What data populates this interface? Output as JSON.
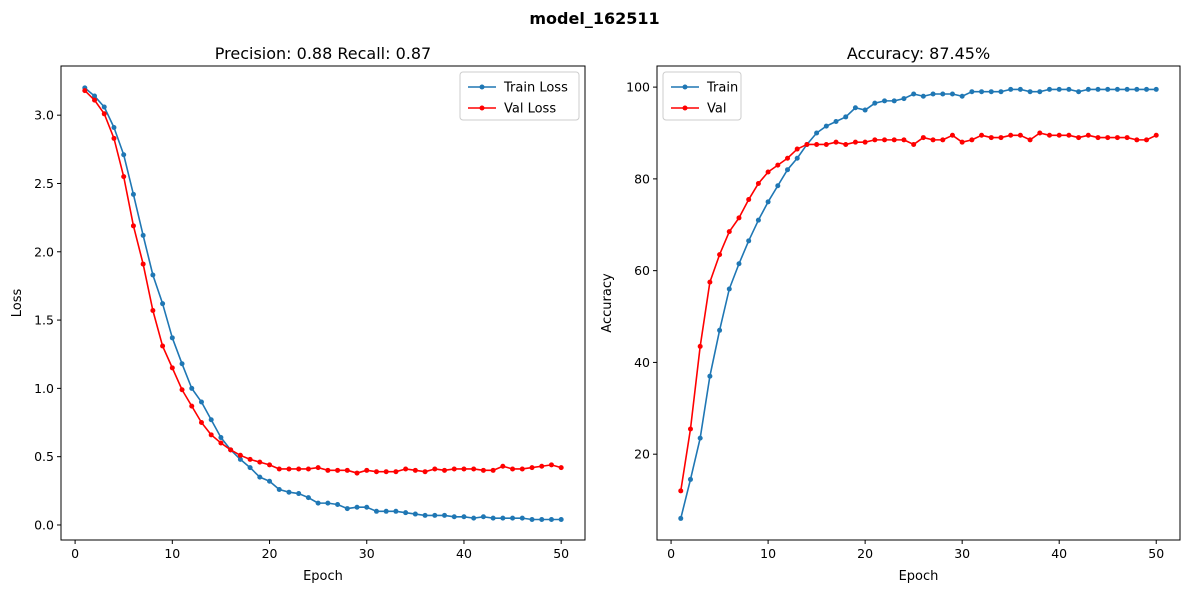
{
  "figure": {
    "suptitle": "model_162511"
  },
  "chart_data": [
    {
      "type": "line",
      "title": "Precision: 0.88 Recall: 0.87",
      "xlabel": "Epoch",
      "ylabel": "Loss",
      "xlim": [
        -1.45,
        52.45
      ],
      "ylim": [
        -0.11,
        3.36
      ],
      "xticks": [
        0,
        10,
        20,
        30,
        40,
        50
      ],
      "xtick_labels": [
        "0",
        "10",
        "20",
        "30",
        "40",
        "50"
      ],
      "yticks": [
        0.0,
        0.5,
        1.0,
        1.5,
        2.0,
        2.5,
        3.0
      ],
      "ytick_labels": [
        "0.0",
        "0.5",
        "1.0",
        "1.5",
        "2.0",
        "2.5",
        "3.0"
      ],
      "grid": false,
      "legend": "top-right",
      "x": [
        1,
        2,
        3,
        4,
        5,
        6,
        7,
        8,
        9,
        10,
        11,
        12,
        13,
        14,
        15,
        16,
        17,
        18,
        19,
        20,
        21,
        22,
        23,
        24,
        25,
        26,
        27,
        28,
        29,
        30,
        31,
        32,
        33,
        34,
        35,
        36,
        37,
        38,
        39,
        40,
        41,
        42,
        43,
        44,
        45,
        46,
        47,
        48,
        49,
        50
      ],
      "series": [
        {
          "name": "Train Loss",
          "color": "#1f77b4",
          "values": [
            3.2,
            3.14,
            3.06,
            2.91,
            2.71,
            2.42,
            2.12,
            1.83,
            1.62,
            1.37,
            1.18,
            1.0,
            0.9,
            0.77,
            0.64,
            0.55,
            0.48,
            0.42,
            0.35,
            0.32,
            0.26,
            0.24,
            0.23,
            0.2,
            0.16,
            0.16,
            0.15,
            0.12,
            0.13,
            0.13,
            0.1,
            0.1,
            0.1,
            0.09,
            0.08,
            0.07,
            0.07,
            0.07,
            0.06,
            0.06,
            0.05,
            0.06,
            0.05,
            0.05,
            0.05,
            0.05,
            0.04,
            0.04,
            0.04,
            0.04
          ]
        },
        {
          "name": "Val Loss",
          "color": "#ff0000",
          "values": [
            3.18,
            3.11,
            3.01,
            2.83,
            2.55,
            2.19,
            1.91,
            1.57,
            1.31,
            1.15,
            0.99,
            0.87,
            0.75,
            0.66,
            0.6,
            0.55,
            0.51,
            0.48,
            0.46,
            0.44,
            0.41,
            0.41,
            0.41,
            0.41,
            0.42,
            0.4,
            0.4,
            0.4,
            0.38,
            0.4,
            0.39,
            0.39,
            0.39,
            0.41,
            0.4,
            0.39,
            0.41,
            0.4,
            0.41,
            0.41,
            0.41,
            0.4,
            0.4,
            0.43,
            0.41,
            0.41,
            0.42,
            0.43,
            0.44,
            0.42
          ]
        }
      ]
    },
    {
      "type": "line",
      "title": "Accuracy: 87.45%",
      "xlabel": "Epoch",
      "ylabel": "Accuracy",
      "xlim": [
        -1.45,
        52.45
      ],
      "ylim": [
        1.3,
        104.6
      ],
      "xticks": [
        0,
        10,
        20,
        30,
        40,
        50
      ],
      "xtick_labels": [
        "0",
        "10",
        "20",
        "30",
        "40",
        "50"
      ],
      "yticks": [
        20,
        40,
        60,
        80,
        100
      ],
      "ytick_labels": [
        "20",
        "40",
        "60",
        "80",
        "100"
      ],
      "grid": false,
      "legend": "top-left",
      "x": [
        1,
        2,
        3,
        4,
        5,
        6,
        7,
        8,
        9,
        10,
        11,
        12,
        13,
        14,
        15,
        16,
        17,
        18,
        19,
        20,
        21,
        22,
        23,
        24,
        25,
        26,
        27,
        28,
        29,
        30,
        31,
        32,
        33,
        34,
        35,
        36,
        37,
        38,
        39,
        40,
        41,
        42,
        43,
        44,
        45,
        46,
        47,
        48,
        49,
        50
      ],
      "series": [
        {
          "name": "Train",
          "color": "#1f77b4",
          "values": [
            6.0,
            14.5,
            23.5,
            37.0,
            47.0,
            56.0,
            61.5,
            66.5,
            71.0,
            75.0,
            78.5,
            82.0,
            84.5,
            87.5,
            90.0,
            91.5,
            92.5,
            93.5,
            95.5,
            95.0,
            96.5,
            97.0,
            97.0,
            97.5,
            98.5,
            98.0,
            98.5,
            98.5,
            98.5,
            98.0,
            99.0,
            99.0,
            99.0,
            99.0,
            99.5,
            99.5,
            99.0,
            99.0,
            99.5,
            99.5,
            99.5,
            99.0,
            99.5,
            99.5,
            99.5,
            99.5,
            99.5,
            99.5,
            99.5,
            99.5
          ]
        },
        {
          "name": "Val",
          "color": "#ff0000",
          "values": [
            12.0,
            25.5,
            43.5,
            57.5,
            63.5,
            68.5,
            71.5,
            75.5,
            79.0,
            81.5,
            83.0,
            84.5,
            86.5,
            87.5,
            87.5,
            87.5,
            88.0,
            87.5,
            88.0,
            88.0,
            88.5,
            88.5,
            88.5,
            88.5,
            87.5,
            89.0,
            88.5,
            88.5,
            89.5,
            88.0,
            88.5,
            89.5,
            89.0,
            89.0,
            89.5,
            89.5,
            88.5,
            90.0,
            89.5,
            89.5,
            89.5,
            89.0,
            89.5,
            89.0,
            89.0,
            89.0,
            89.0,
            88.5,
            88.5,
            89.5
          ]
        }
      ]
    }
  ]
}
